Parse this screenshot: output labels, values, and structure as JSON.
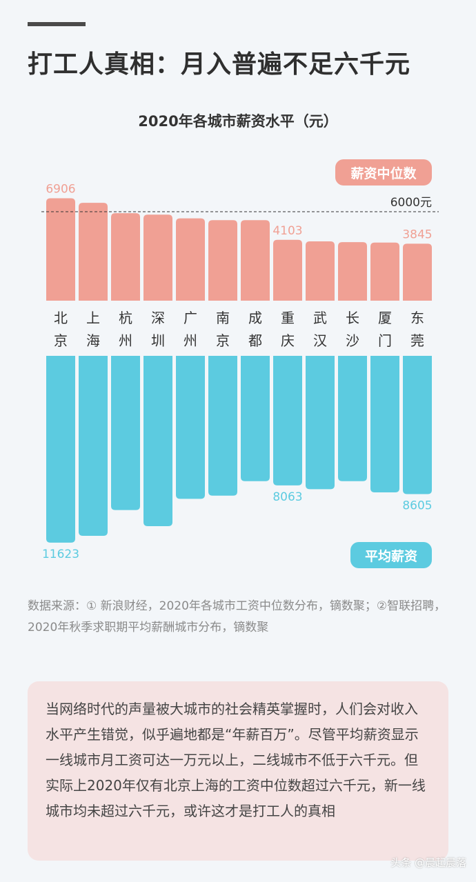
{
  "headline": "打工人真相：月入普遍不足六千元",
  "chart_data": {
    "type": "bar",
    "title": "2020年各城市薪资水平（元）",
    "categories": [
      "北京",
      "上海",
      "杭州",
      "深圳",
      "广州",
      "南京",
      "成都",
      "重庆",
      "武汉",
      "长沙",
      "厦门",
      "东莞"
    ],
    "series": [
      {
        "name": "薪资中位数",
        "color": "#f0a094",
        "values": [
          6906,
          6600,
          5900,
          5800,
          5550,
          5430,
          5430,
          4103,
          4000,
          3950,
          3920,
          3845
        ],
        "labeled": {
          "0": "6906",
          "7": "4103",
          "11": "3845"
        }
      },
      {
        "name": "平均薪资",
        "color": "#5ccbe0",
        "values": [
          11623,
          11200,
          9600,
          10600,
          8900,
          8700,
          7800,
          8063,
          8300,
          7800,
          8500,
          8605
        ],
        "labeled": {
          "0": "11623",
          "7": "8063",
          "11": "8605"
        }
      }
    ],
    "reference_line": {
      "value": 6000,
      "label": "6000元"
    }
  },
  "source_text": "数据来源：① 新浪财经，2020年各城市工资中位数分布，镝数聚；②智联招聘，2020年秋季求职期平均薪酬城市分布，镝数聚",
  "note": "当网络时代的声量被大城市的社会精英掌握时，人们会对收入水平产生错觉，似乎遍地都是“年薪百万”。尽管平均薪资显示一线城市月工资可达一万元以上，二线城市不低于六千元。但实际上2020年仅有北京上海的工资中位数超过六千元，新一线城市均未超过六千元，或许这才是打工人的真相",
  "footer": "头条 @晨起晨落"
}
